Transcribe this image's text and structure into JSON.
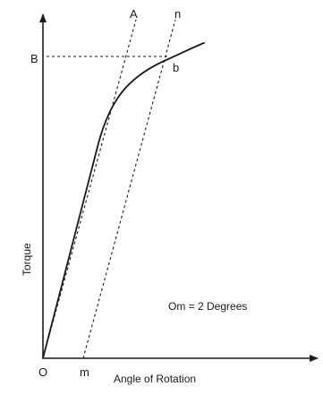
{
  "diagram": {
    "labels": {
      "origin": "O",
      "m": "m",
      "B": "B",
      "b": "b",
      "A": "A",
      "n": "n"
    },
    "y_axis_label": "Torque",
    "x_axis_label": "Angle of Rotation",
    "annotation": "Om = 2 Degrees",
    "colors": {
      "ink": "#1a1a1a",
      "background": "#ffffff"
    }
  }
}
